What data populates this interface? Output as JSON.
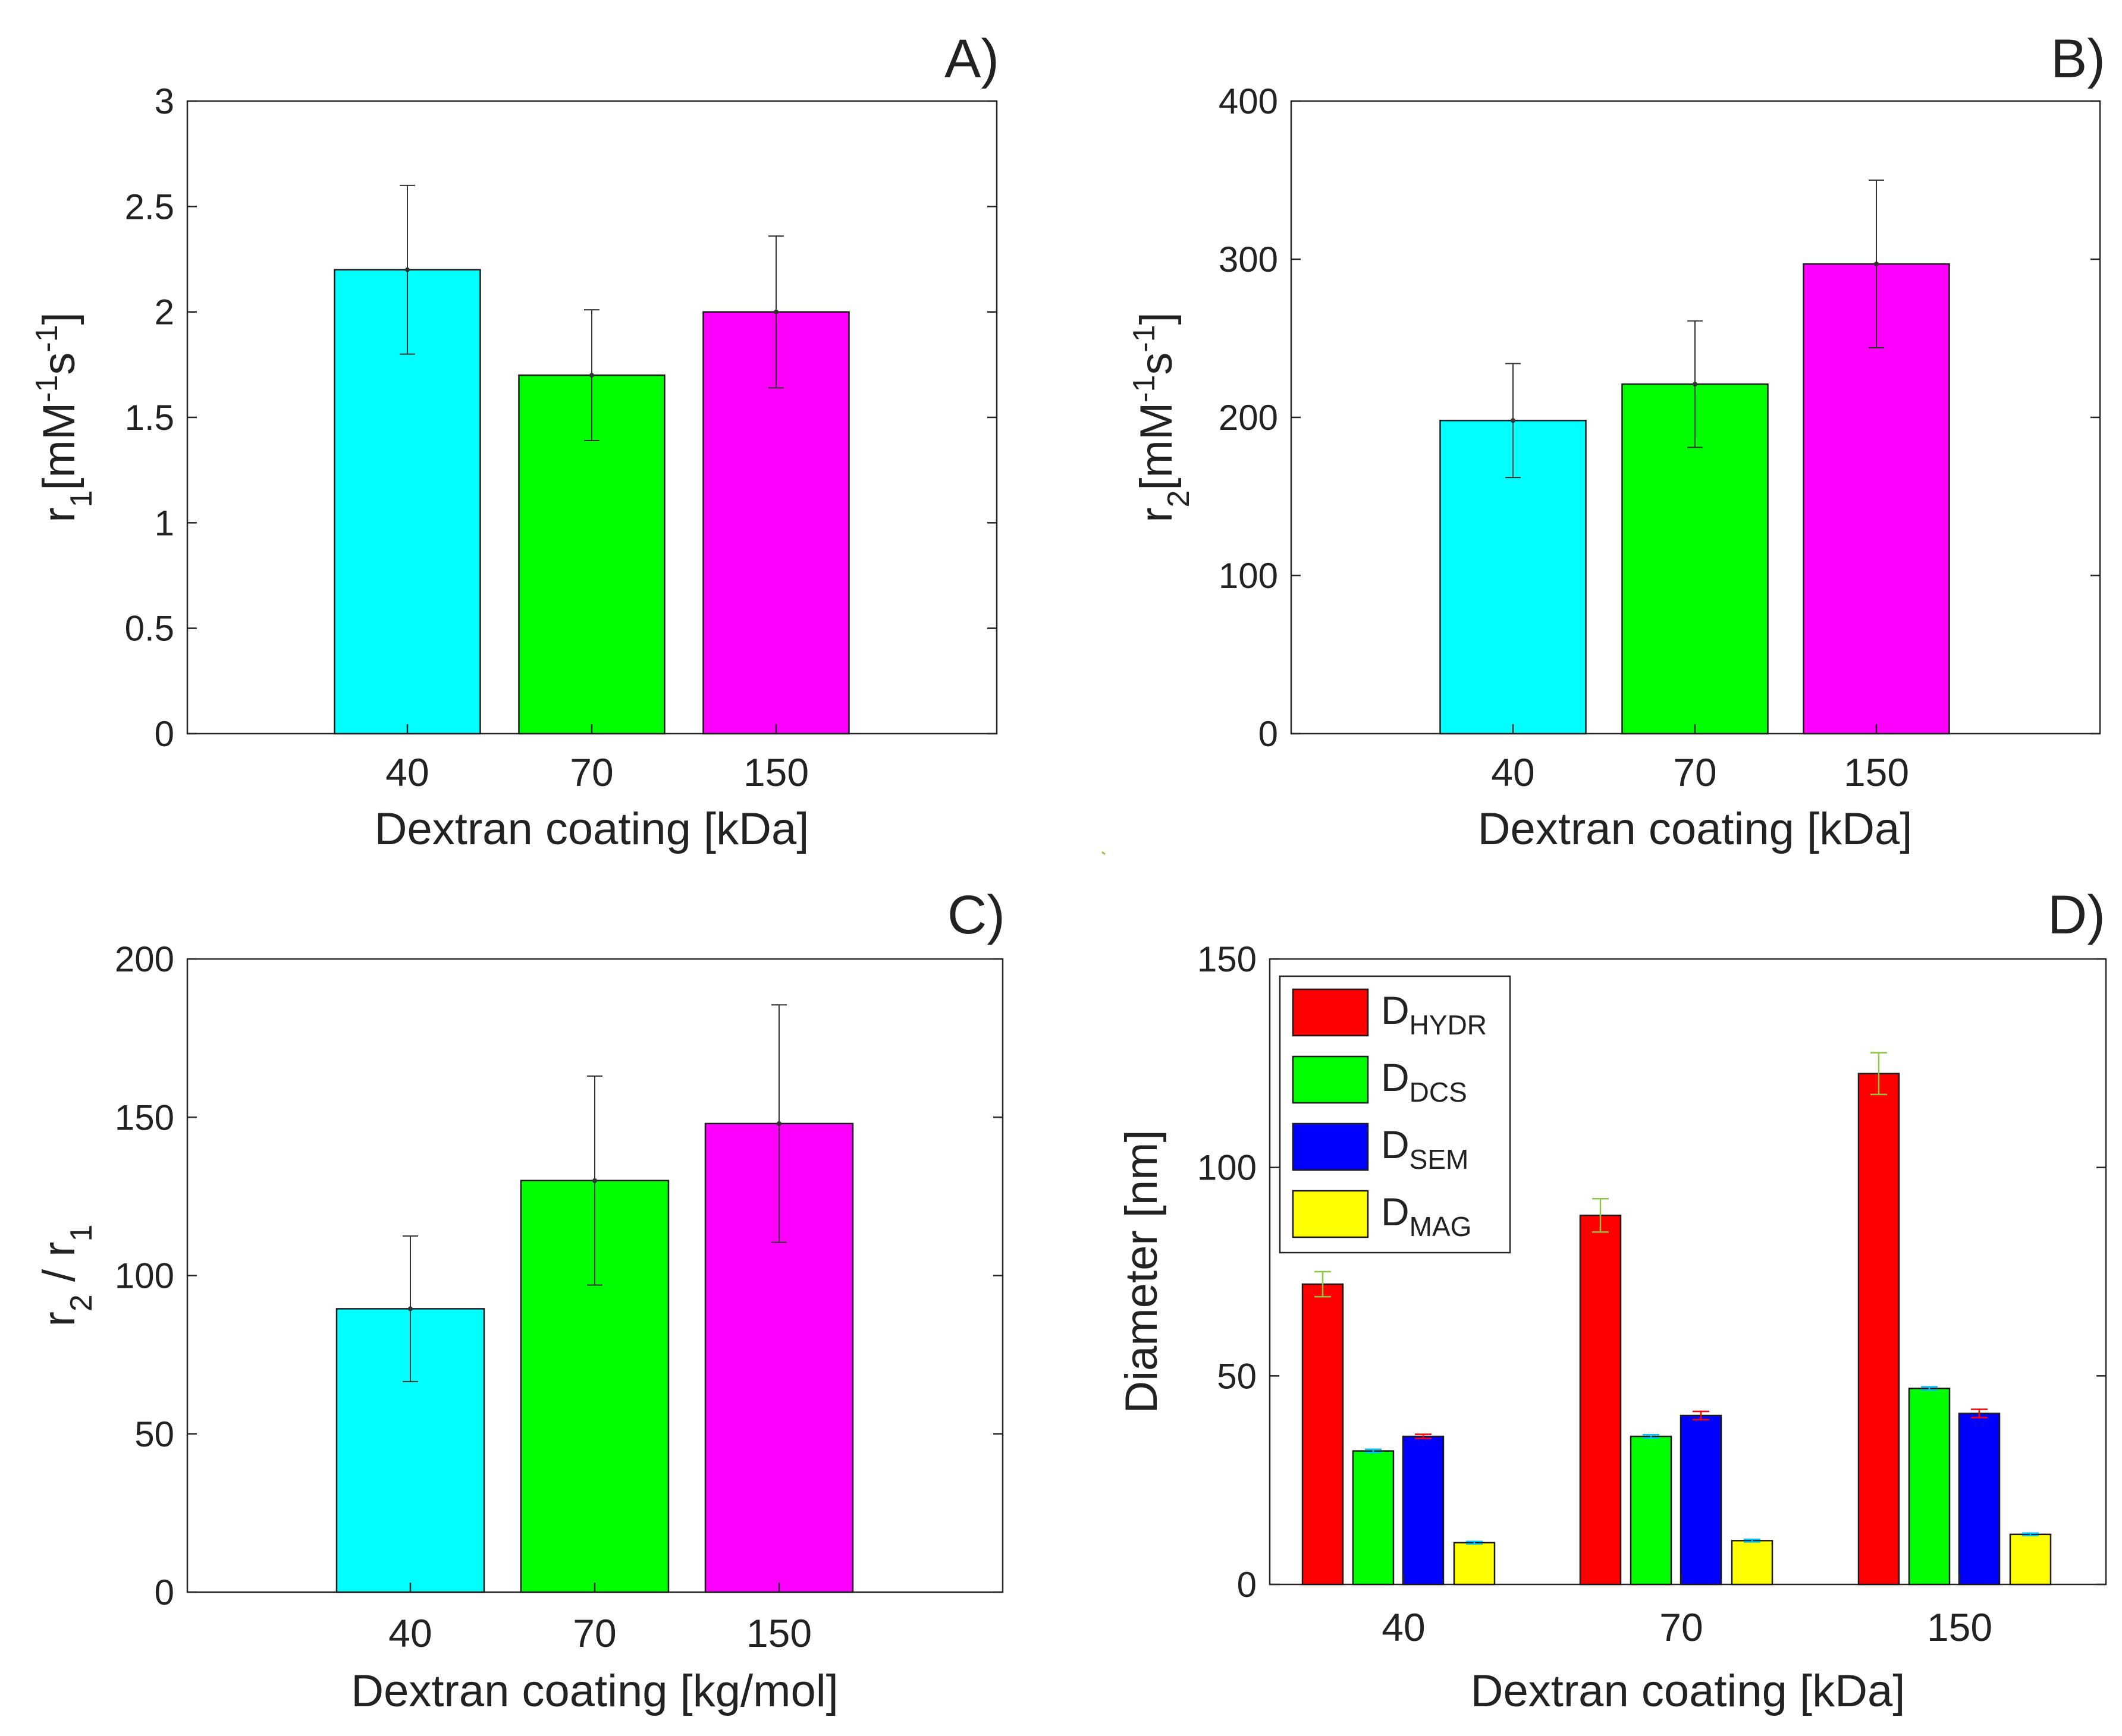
{
  "chart_data": [
    {
      "id": "A",
      "type": "bar",
      "panel_label": "A)",
      "categories": [
        "40",
        "70",
        "150"
      ],
      "values": [
        2.2,
        1.7,
        2.0
      ],
      "errors": [
        0.4,
        0.31,
        0.36
      ],
      "colors": [
        "#00ffff",
        "#00ff00",
        "#ff00ff"
      ],
      "xlabel": "Dextran coating [kDa]",
      "ylabel": {
        "base": "r",
        "sub": "1",
        "unit_prefix": "[mM",
        "sup1": "-1",
        "mid": "s",
        "sup2": "-1",
        "unit_suffix": "]"
      },
      "ylim": [
        0,
        3
      ],
      "yticks": [
        0,
        0.5,
        1,
        1.5,
        2,
        2.5,
        3
      ],
      "ytick_labels": [
        "0",
        "0.5",
        "1",
        "1.5",
        "2",
        "2.5",
        "3"
      ]
    },
    {
      "id": "B",
      "type": "bar",
      "panel_label": "B)",
      "categories": [
        "40",
        "70",
        "150"
      ],
      "values": [
        198,
        221,
        297
      ],
      "errors": [
        36,
        40,
        53
      ],
      "colors": [
        "#00ffff",
        "#00ff00",
        "#ff00ff"
      ],
      "xlabel": "Dextran coating [kDa]",
      "ylabel": {
        "base": "r",
        "sub": "2",
        "unit_prefix": "[mM",
        "sup1": "-1",
        "mid": "s",
        "sup2": "-1",
        "unit_suffix": "]"
      },
      "ylim": [
        0,
        400
      ],
      "yticks": [
        0,
        100,
        200,
        300,
        400
      ],
      "ytick_labels": [
        "0",
        "100",
        "200",
        "300",
        "400"
      ]
    },
    {
      "id": "C",
      "type": "bar",
      "panel_label": "C)",
      "categories": [
        "40",
        "70",
        "150"
      ],
      "values": [
        89.5,
        130,
        148
      ],
      "errors": [
        23,
        33,
        37.5
      ],
      "colors": [
        "#00ffff",
        "#00ff00",
        "#ff00ff"
      ],
      "xlabel": "Dextran coating [kg/mol]",
      "ylabel": {
        "a": "r",
        "a_sub": "2",
        "sep": " / ",
        "b": "r",
        "b_sub": "1"
      },
      "ylim": [
        0,
        200
      ],
      "yticks": [
        0,
        50,
        100,
        150,
        200
      ],
      "ytick_labels": [
        "0",
        "50",
        "100",
        "150",
        "200"
      ]
    },
    {
      "id": "D",
      "type": "bar",
      "grouped": true,
      "panel_label": "D)",
      "categories": [
        "40",
        "70",
        "150"
      ],
      "series": [
        {
          "name": "D",
          "sub": "HYDR",
          "color": "#ff0000",
          "err_color": "#8dc63f",
          "values": [
            72,
            88.5,
            122.5
          ],
          "errors": [
            3,
            4,
            5
          ]
        },
        {
          "name": "D",
          "sub": "DCS",
          "color": "#00ff00",
          "err_color": "#00bfff",
          "values": [
            32,
            35.5,
            47
          ],
          "errors": [
            0.4,
            0.4,
            0.4
          ]
        },
        {
          "name": "D",
          "sub": "SEM",
          "color": "#0000ff",
          "err_color": "#ff0000",
          "values": [
            35.5,
            40.5,
            41
          ],
          "errors": [
            0.5,
            1,
            1
          ]
        },
        {
          "name": "D",
          "sub": "MAG",
          "color": "#ffff00",
          "err_color": "#00bfff",
          "values": [
            10,
            10.5,
            12
          ],
          "errors": [
            0.3,
            0.3,
            0.3
          ]
        }
      ],
      "xlabel": "Dextran coating [kDa]",
      "ylabel": {
        "text": "Diameter [nm]"
      },
      "ylim": [
        0,
        150
      ],
      "yticks": [
        0,
        50,
        100,
        150
      ],
      "ytick_labels": [
        "0",
        "50",
        "100",
        "150"
      ],
      "legend_position": "top-left"
    }
  ]
}
